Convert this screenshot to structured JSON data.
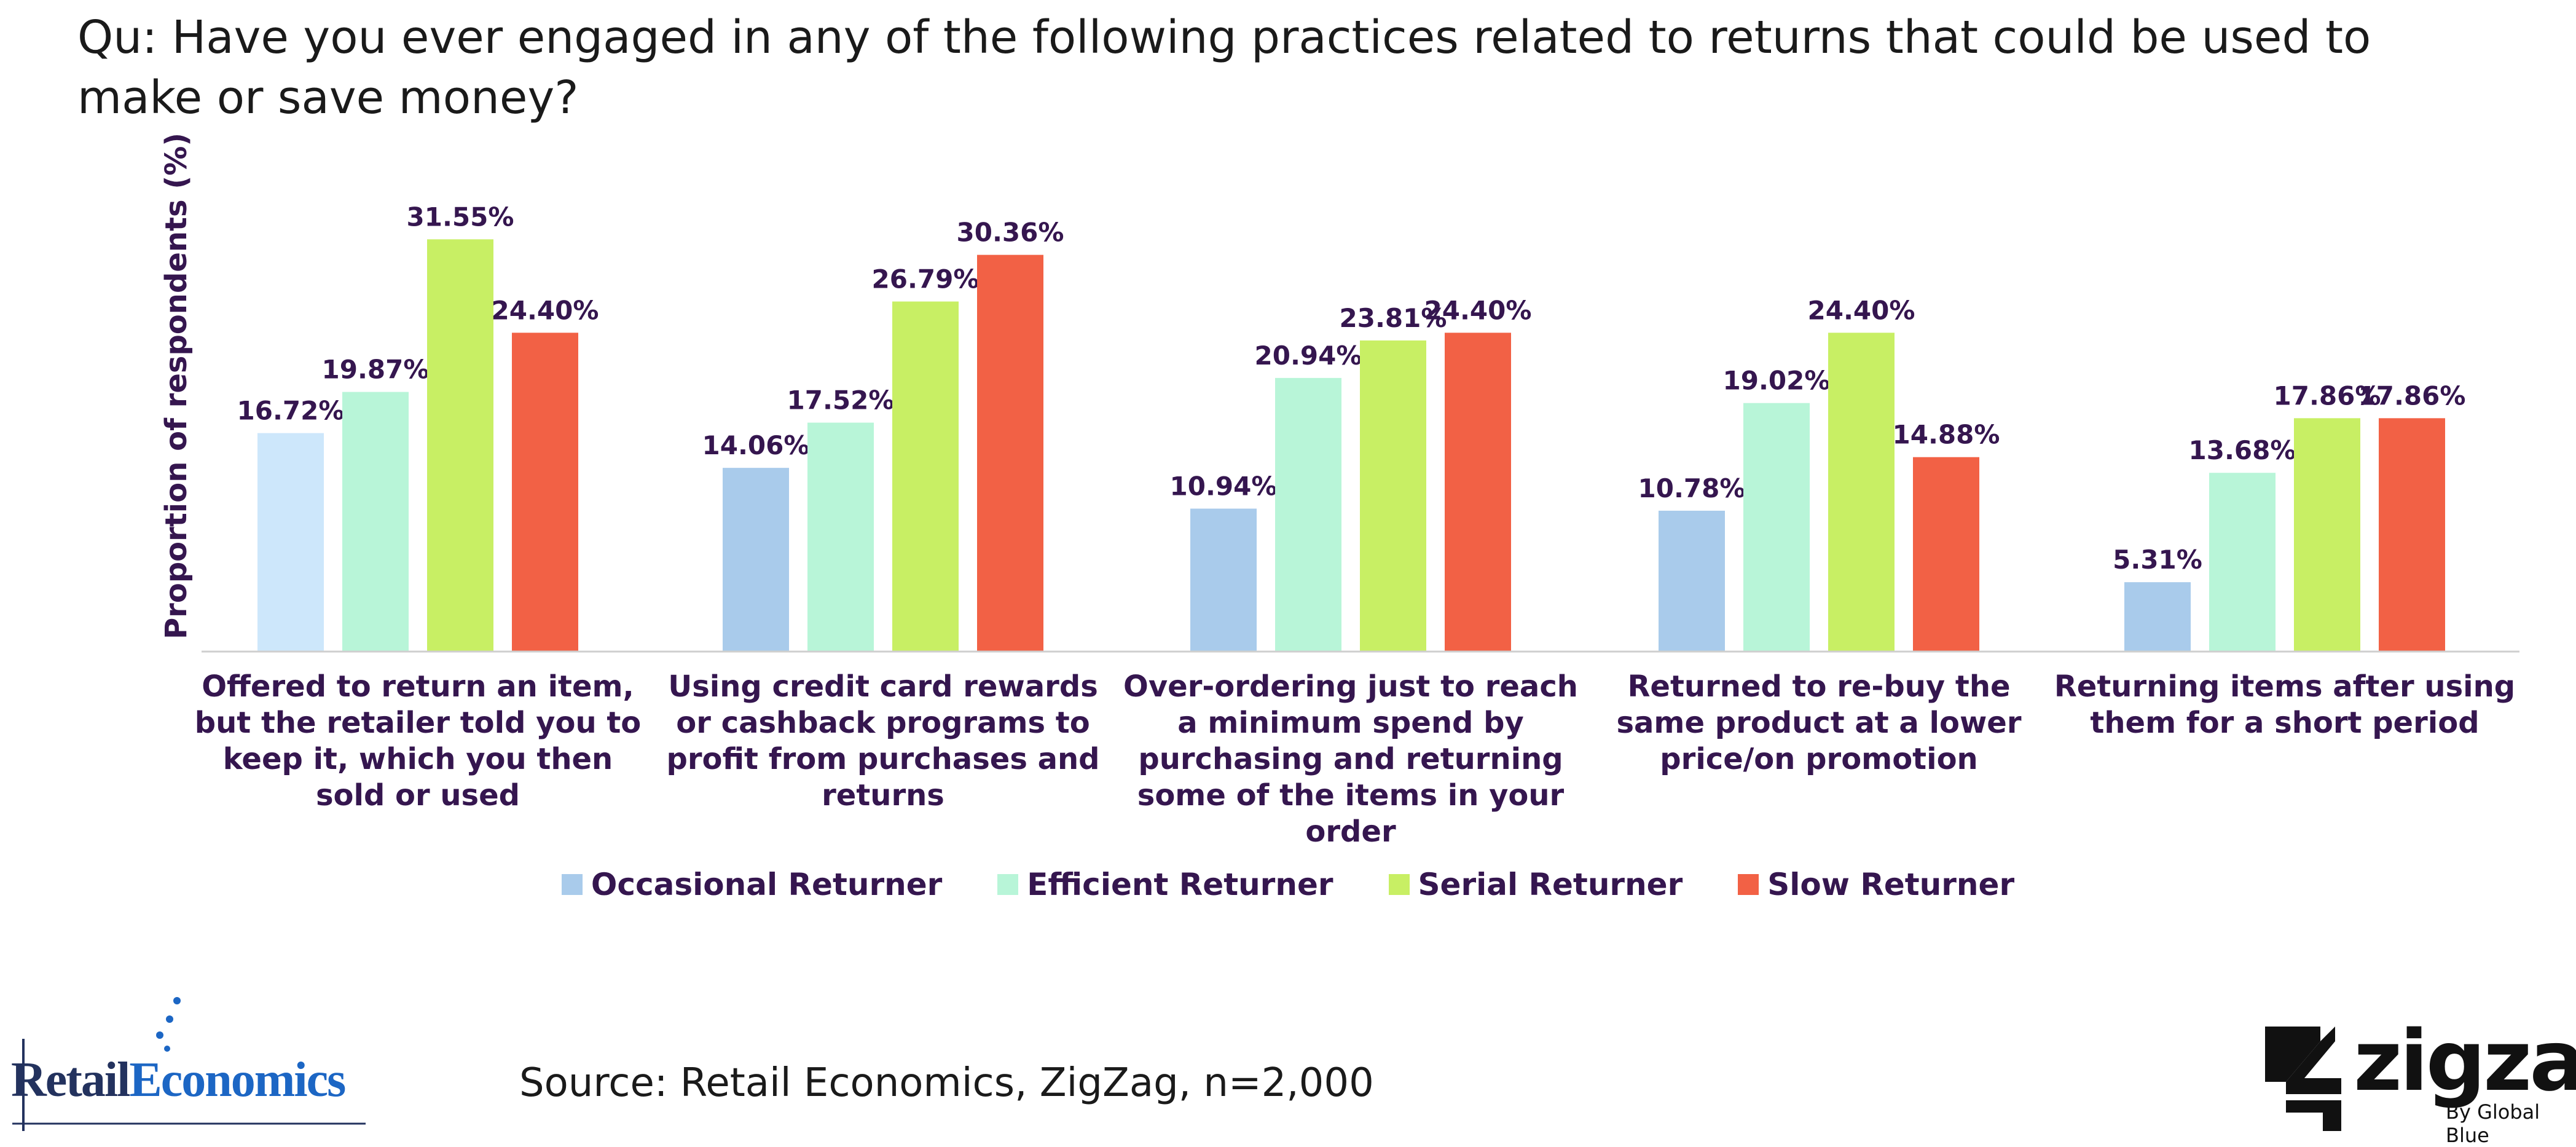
{
  "title": "Qu: Have you ever engaged in any of the following practices related to returns that could be used to make or save money?",
  "source": "Source: Retail Economics, ZigZag, n=2,000",
  "logos": {
    "retail_economics": {
      "part1": "Retail",
      "part2": "Economics"
    },
    "zigzag": {
      "word": "zigzag",
      "tagline": "By Global Blue"
    }
  },
  "chart_data": {
    "type": "bar",
    "ylabel": "Proportion of respondents (%)",
    "ylim": [
      0,
      35
    ],
    "grid": false,
    "legend_position": "bottom",
    "categories": [
      "Offered to return an item, but the retailer told you to keep it, which you then sold or used",
      "Using credit card rewards or cashback programs to profit from purchases and returns",
      "Over-ordering just to reach a minimum spend by purchasing and returning some of the items in your order",
      "Returned to re-buy the same product at a lower price/on promotion",
      "Returning items after using them for a short period"
    ],
    "series": [
      {
        "name": "Occasional Returner",
        "color": "#a9cbeb",
        "values": [
          16.72,
          14.06,
          10.94,
          10.78,
          5.31
        ],
        "labels": [
          "16.72%",
          "14.06%",
          "10.94%",
          "10.78%",
          "5.31%"
        ]
      },
      {
        "name": "Efficient Returner",
        "color": "#b8f5d8",
        "values": [
          19.87,
          17.52,
          20.94,
          19.02,
          13.68
        ],
        "labels": [
          "19.87%",
          "17.52%",
          "20.94%",
          "19.02%",
          "13.68%"
        ]
      },
      {
        "name": "Serial Returner",
        "color": "#c8ef64",
        "values": [
          31.55,
          26.79,
          23.81,
          24.4,
          17.86
        ],
        "labels": [
          "31.55%",
          "26.79%",
          "23.81%",
          "24.40%",
          "17.86%"
        ]
      },
      {
        "name": "Slow Returner",
        "color": "#f26145",
        "values": [
          24.4,
          30.36,
          24.4,
          14.88,
          17.86
        ],
        "labels": [
          "24.40%",
          "30.36%",
          "24.40%",
          "14.88%",
          "17.86%"
        ]
      }
    ],
    "first_bar_color": "#cde7fb"
  }
}
